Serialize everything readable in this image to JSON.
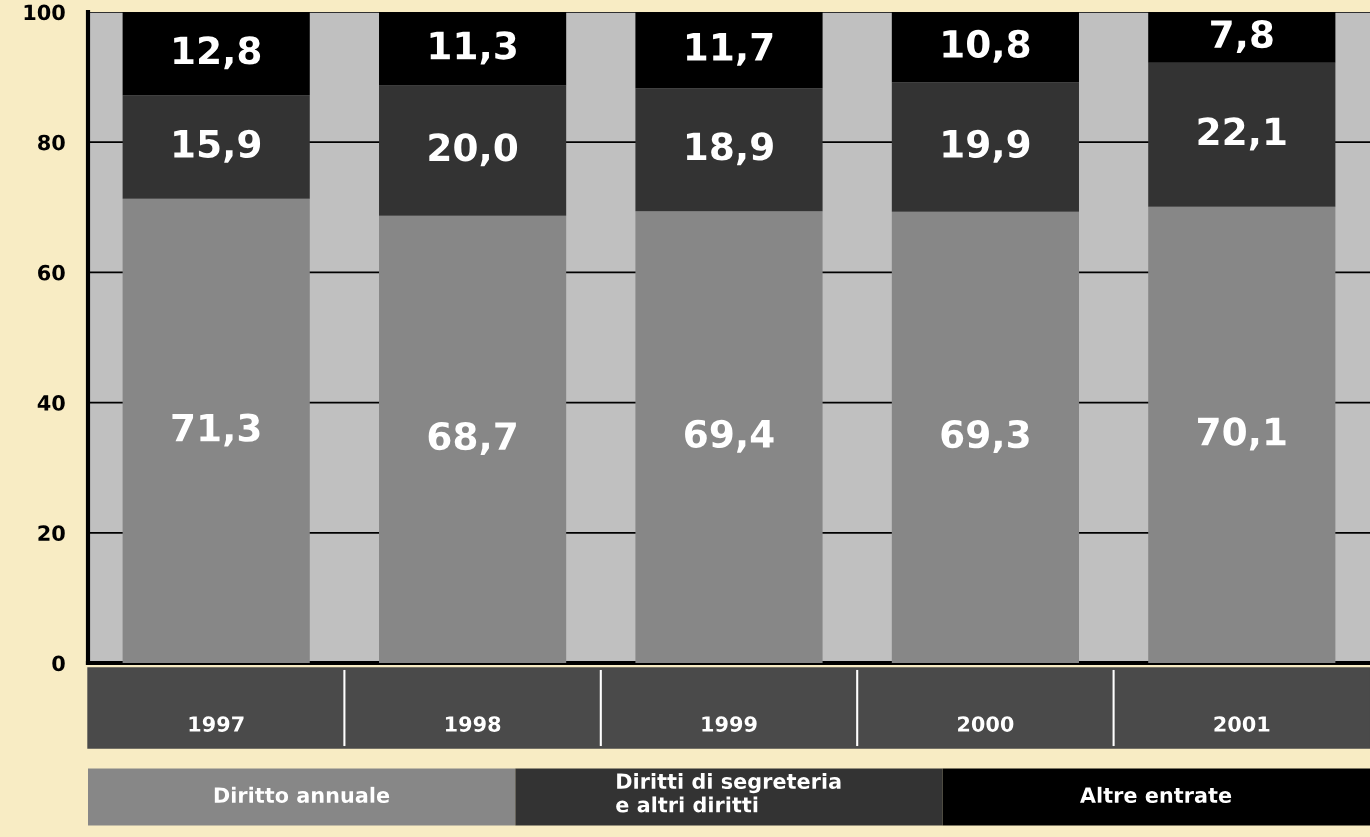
{
  "chart_data": {
    "type": "bar",
    "stacked": true,
    "categories": [
      "1997",
      "1998",
      "1999",
      "2000",
      "2001"
    ],
    "series": [
      {
        "name": "Diritto annuale",
        "color": "#878787",
        "values": [
          71.3,
          68.7,
          69.4,
          69.3,
          70.1
        ],
        "value_labels": [
          "71,3",
          "68,7",
          "69,4",
          "69,3",
          "70,1"
        ]
      },
      {
        "name": "Diritti di segreteria\ne altri diritti",
        "color": "#333333",
        "values": [
          15.9,
          20.0,
          18.9,
          19.9,
          22.1
        ],
        "value_labels": [
          "15,9",
          "20,0",
          "18,9",
          "19,9",
          "22,1"
        ]
      },
      {
        "name": "Altre entrate",
        "color": "#000000",
        "values": [
          12.8,
          11.3,
          11.7,
          10.8,
          7.8
        ],
        "value_labels": [
          "12,8",
          "11,3",
          "11,7",
          "10,8",
          "7,8"
        ]
      }
    ],
    "ylim": [
      0,
      100
    ],
    "yticks": [
      0,
      20,
      40,
      60,
      80,
      100
    ],
    "grid": "y",
    "legend": "bottom"
  }
}
